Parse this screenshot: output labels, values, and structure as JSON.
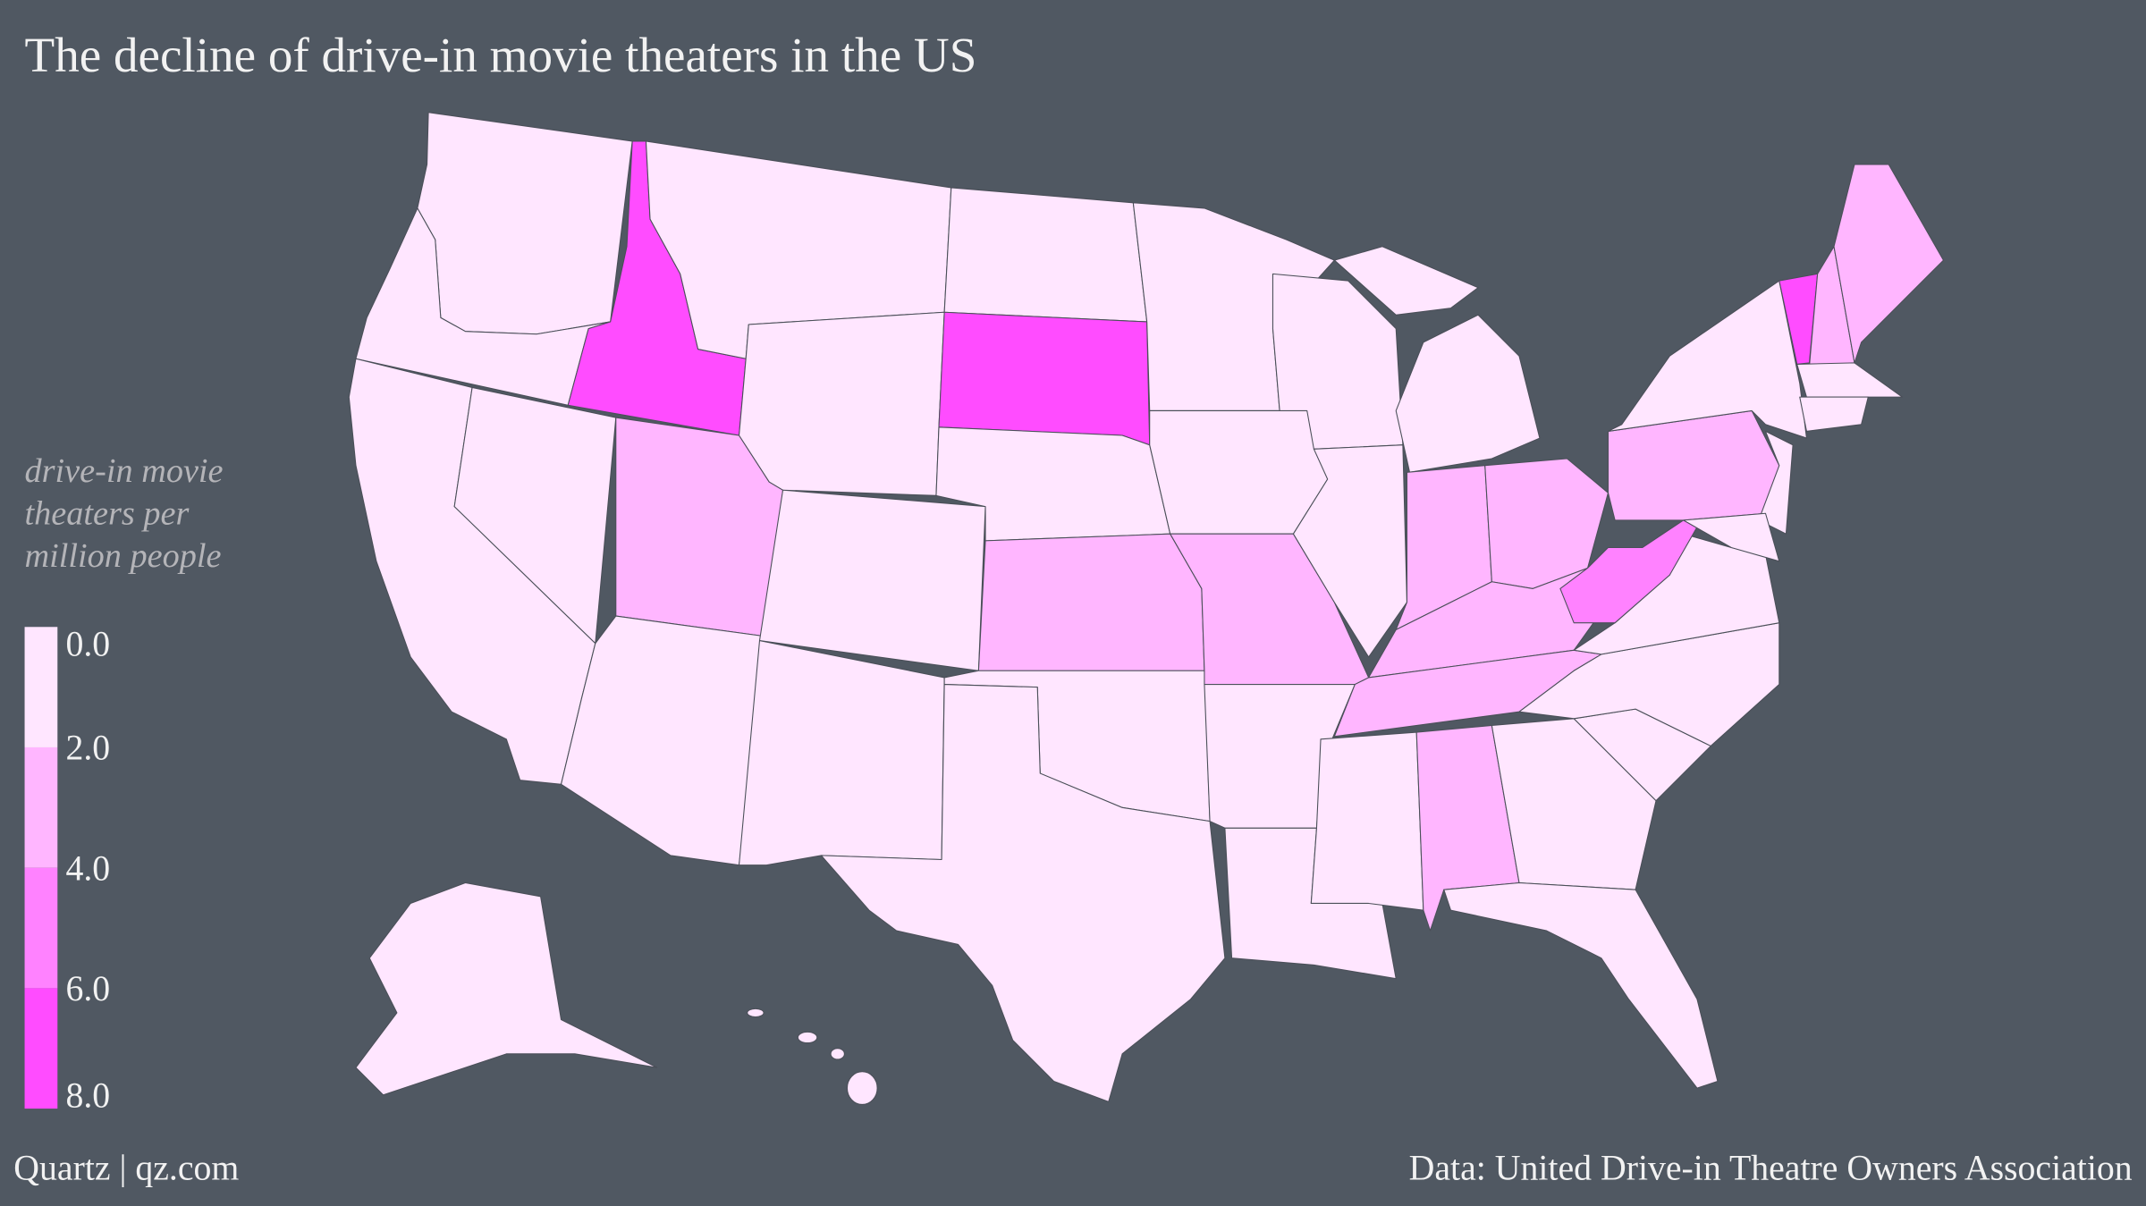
{
  "title": "The decline of drive-in movie theaters in the US",
  "legend": {
    "title_lines": [
      "drive-in movie",
      "theaters per",
      "million people"
    ],
    "ticks": [
      {
        "value": 0,
        "label": "0.0"
      },
      {
        "value": 2,
        "label": "2.0"
      },
      {
        "value": 4,
        "label": "4.0"
      },
      {
        "value": 6,
        "label": "6.0"
      },
      {
        "value": 8,
        "label": "8.0"
      }
    ],
    "colors": [
      "#ffe6ff",
      "#ffb6ff",
      "#ff82ff",
      "#ff4cff"
    ]
  },
  "footer": {
    "left": "Quartz | qz.com",
    "right": "Data: United Drive-in Theatre Owners Association"
  }
}
